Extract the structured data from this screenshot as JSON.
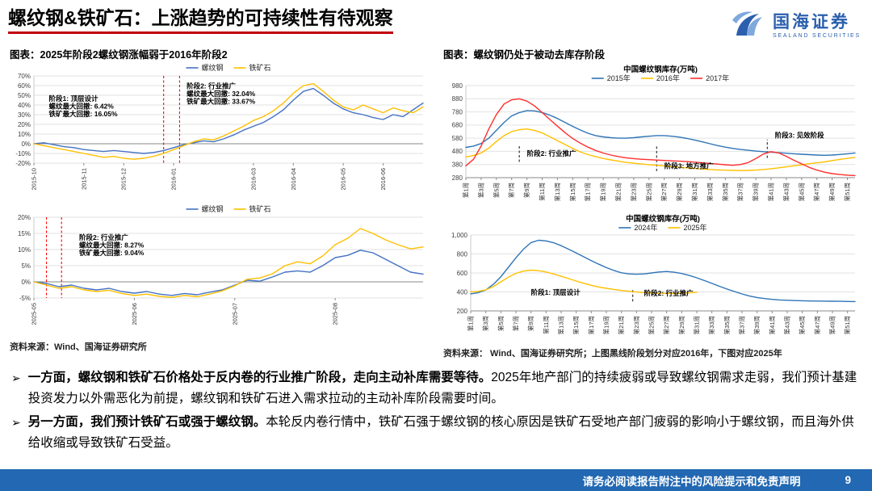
{
  "header": {
    "title": "螺纹钢&铁矿石：上涨趋势的可持续性有待观察",
    "logo_cn": "国海证券",
    "logo_en": "SEALAND SECURITIES"
  },
  "left_panel": {
    "caption": "图表：2025年阶段2螺纹钢涨幅弱于2016年阶段2",
    "source": "资料来源：Wind、国海证券研究所"
  },
  "right_panel": {
    "caption": "图表：螺纹钢仍处于被动去库存阶段",
    "source": "资料来源： Wind、国海证券研究所；上图黑线阶段划分对应2016年，下图对应2025年"
  },
  "bullet_marker": "➢",
  "bullets": [
    {
      "segments": [
        {
          "text": "一方面，螺纹钢和铁矿石价格处于反内卷的行业推广阶段，走向主动补库需要等待。",
          "bold": true
        },
        {
          "text": "2025年地产部门的持续疲弱或导致螺纹钢需求走弱，我们预计基建投资发力以外需恶化为前提，螺纹钢和铁矿石进入需求拉动的主动补库阶段需要时间。",
          "bold": false
        }
      ]
    },
    {
      "segments": [
        {
          "text": "另一方面，我们预计铁矿石或强于螺纹钢。",
          "bold": true
        },
        {
          "text": "本轮反内卷行情中，铁矿石强于螺纹钢的核心原因是铁矿石受地产部门疲弱的影响小于螺纹钢，而且海外供给收缩或导致铁矿石受益。",
          "bold": false
        }
      ]
    }
  ],
  "footer": {
    "disclaimer": "请务必阅读报告附注中的风险提示和免责声明",
    "page": "9"
  },
  "colors": {
    "accent_red": "#C00000",
    "brand_blue": "#2B5FAE",
    "footer_blue": "#2268B2",
    "rebar_blue": "#4472C4",
    "ore_yellow": "#FFC000",
    "inventory_blue": "#2E75B6",
    "inventory_red": "#FF2E2E"
  },
  "chart_data": [
    {
      "id": "chart1",
      "type": "line",
      "title": "",
      "y_format": "percent",
      "ylim": [
        -20,
        70
      ],
      "y_step": 10,
      "x_ticks": {
        "positions": [
          0,
          5,
          9,
          14,
          22,
          26,
          31,
          35
        ],
        "labels": [
          "2015-10",
          "2015-11",
          "2015-12",
          "2016-01",
          "2016-03",
          "2016-04",
          "2016-05",
          "2016-06"
        ]
      },
      "series": [
        {
          "name": "螺纹钢",
          "color": "#4472C4",
          "values": [
            0,
            1,
            -1,
            -3,
            -4,
            -6,
            -7,
            -8,
            -7,
            -8,
            -9,
            -10,
            -9,
            -7,
            -4,
            -1,
            1,
            3,
            2,
            5,
            9,
            14,
            18,
            22,
            28,
            35,
            45,
            54,
            57,
            50,
            42,
            36,
            32,
            30,
            27,
            25,
            30,
            28,
            35,
            42
          ]
        },
        {
          "name": "铁矿石",
          "color": "#FFC000",
          "values": [
            0,
            -2,
            -4,
            -6,
            -8,
            -10,
            -12,
            -14,
            -13,
            -15,
            -16,
            -15,
            -13,
            -10,
            -6,
            -2,
            2,
            5,
            4,
            8,
            13,
            18,
            24,
            28,
            34,
            42,
            52,
            60,
            62,
            54,
            45,
            38,
            35,
            40,
            36,
            32,
            37,
            34,
            32,
            38
          ]
        }
      ],
      "vlines": [
        {
          "x": 13,
          "color": "#FF0000"
        },
        {
          "x": 14.6,
          "color": "#FF0000"
        }
      ],
      "annotations": [
        {
          "x": 1.5,
          "y": 44,
          "lines": [
            "阶段1: 顶层设计",
            "螺纹最大回撤: 6.42%",
            "铁矿最大回撤: 16.05%"
          ]
        },
        {
          "x": 15.3,
          "y": 57,
          "lines": [
            "阶段2: 行业推广",
            "螺纹最大回撤: 32.04%",
            "铁矿最大回撤: 33.67%"
          ]
        }
      ]
    },
    {
      "id": "chart2",
      "type": "line",
      "title": "",
      "y_format": "percent",
      "ylim": [
        -5,
        20
      ],
      "y_step": 5,
      "x_ticks": {
        "positions": [
          0,
          8,
          16,
          24
        ],
        "labels": [
          "2025-05",
          "2025-06",
          "2025-07",
          "2025-08"
        ]
      },
      "series": [
        {
          "name": "螺纹钢",
          "color": "#4472C4",
          "values": [
            0,
            -0.5,
            -1.5,
            -1,
            -2,
            -2.5,
            -2,
            -3,
            -3.5,
            -3,
            -3.8,
            -4.2,
            -3.6,
            -4,
            -3.2,
            -2.5,
            -1,
            0.5,
            0.2,
            1.5,
            3,
            3.4,
            3,
            5,
            7.5,
            8.2,
            9.8,
            9,
            7,
            5,
            3,
            2.4
          ]
        },
        {
          "name": "铁矿石",
          "color": "#FFC000",
          "values": [
            0,
            -1,
            -2,
            -1.5,
            -2.5,
            -3,
            -2.6,
            -3.6,
            -4.2,
            -3.8,
            -4.5,
            -4.8,
            -4.2,
            -4.6,
            -3.8,
            -2.8,
            -1.2,
            0.8,
            1.2,
            2.5,
            5,
            6.2,
            5.6,
            8,
            11.5,
            13.5,
            16.5,
            15,
            13,
            11.5,
            10.2,
            10.8
          ]
        }
      ],
      "vlines": [
        {
          "x": 1,
          "color": "#FF0000"
        },
        {
          "x": 2.2,
          "color": "#FF0000"
        }
      ],
      "annotations": [
        {
          "x": 3.6,
          "y": 13,
          "lines": [
            "阶段2: 行业推广",
            "螺纹最大回撤: 8.27%",
            "铁矿最大回撤: 9.04%"
          ]
        }
      ]
    },
    {
      "id": "chart3",
      "type": "line",
      "title": "中国螺纹钢库存(万吨)",
      "y_format": "number",
      "ylim": [
        280,
        980
      ],
      "y_step": 100,
      "x_ticks": {
        "positions": [
          0,
          2,
          4,
          6,
          8,
          10,
          12,
          14,
          16,
          18,
          20,
          22,
          24,
          26,
          28,
          30,
          32,
          34,
          36,
          38,
          40,
          42,
          44,
          46,
          48,
          50
        ],
        "labels": [
          "第1周",
          "第3周",
          "第5周",
          "第7周",
          "第9周",
          "第11周",
          "第13周",
          "第15周",
          "第17周",
          "第19周",
          "第21周",
          "第23周",
          "第25周",
          "第27周",
          "第29周",
          "第31周",
          "第33周",
          "第35周",
          "第37周",
          "第39周",
          "第41周",
          "第43周",
          "第45周",
          "第47周",
          "第49周",
          "第51周"
        ]
      },
      "series": [
        {
          "name": "2015年",
          "color": "#2E75B6",
          "values": [
            510,
            520,
            540,
            580,
            640,
            700,
            750,
            775,
            790,
            788,
            775,
            755,
            730,
            700,
            670,
            642,
            618,
            600,
            590,
            584,
            580,
            580,
            584,
            590,
            595,
            600,
            600,
            595,
            588,
            578,
            566,
            552,
            538,
            524,
            512,
            502,
            494,
            488,
            482,
            478,
            474,
            470,
            466,
            462,
            458,
            455,
            452,
            450,
            452,
            456,
            462,
            468
          ]
        },
        {
          "name": "2016年",
          "color": "#FFC000",
          "values": [
            438,
            448,
            468,
            505,
            555,
            600,
            630,
            645,
            650,
            640,
            620,
            592,
            562,
            532,
            502,
            476,
            455,
            440,
            426,
            415,
            405,
            396,
            390,
            384,
            379,
            374,
            369,
            364,
            359,
            354,
            350,
            346,
            342,
            339,
            337,
            335,
            334,
            335,
            338,
            342,
            348,
            355,
            362,
            370,
            378,
            386,
            393,
            400,
            410,
            419,
            427,
            434
          ]
        },
        {
          "name": "2017年",
          "color": "#FF2E2E",
          "values": [
            370,
            420,
            520,
            650,
            760,
            840,
            872,
            880,
            862,
            825,
            775,
            722,
            672,
            622,
            578,
            542,
            512,
            487,
            467,
            452,
            440,
            431,
            425,
            420,
            417,
            414,
            411,
            408,
            405,
            402,
            398,
            393,
            388,
            383,
            378,
            374,
            380,
            395,
            425,
            460,
            478,
            468,
            442,
            412,
            385,
            358,
            338,
            322,
            311,
            304,
            299,
            296
          ]
        }
      ],
      "vlines": [
        {
          "x": 7,
          "y1": 400,
          "y2": 520,
          "color": "#222222"
        },
        {
          "x": 25,
          "y1": 330,
          "y2": 520,
          "color": "#222222"
        },
        {
          "x": 39.5,
          "y1": 430,
          "y2": 570,
          "color": "#222222"
        }
      ],
      "annotations": [
        {
          "x": 8,
          "y": 445,
          "lines": [
            "阶段2: 行业推广"
          ]
        },
        {
          "x": 26,
          "y": 350,
          "lines": [
            "阶段3: 地方推广"
          ]
        },
        {
          "x": 40.5,
          "y": 585,
          "lines": [
            "阶段3: 见效阶段"
          ]
        }
      ]
    },
    {
      "id": "chart4",
      "type": "line",
      "title": "中国螺纹钢库存(万吨)",
      "y_format": "number",
      "ylim": [
        200,
        1000
      ],
      "y_step": 200,
      "x_ticks": {
        "positions": [
          0,
          2,
          4,
          6,
          8,
          10,
          12,
          14,
          16,
          18,
          20,
          22,
          24,
          26,
          28,
          30,
          32,
          34,
          36,
          38,
          40,
          42,
          44,
          46,
          48,
          50
        ],
        "labels": [
          "第1周",
          "第3周",
          "第5周",
          "第7周",
          "第9周",
          "第11周",
          "第13周",
          "第15周",
          "第17周",
          "第19周",
          "第21周",
          "第23周",
          "第25周",
          "第27周",
          "第29周",
          "第31周",
          "第33周",
          "第35周",
          "第37周",
          "第39周",
          "第41周",
          "第43周",
          "第45周",
          "第47周",
          "第49周",
          "第51周"
        ]
      },
      "series": [
        {
          "name": "2024年",
          "color": "#2E75B6",
          "values": [
            380,
            392,
            420,
            480,
            560,
            660,
            760,
            850,
            920,
            945,
            938,
            918,
            888,
            850,
            810,
            770,
            730,
            692,
            656,
            626,
            602,
            590,
            586,
            590,
            600,
            610,
            615,
            608,
            594,
            574,
            549,
            520,
            490,
            460,
            431,
            404,
            379,
            357,
            341,
            330,
            322,
            316,
            312,
            309,
            307,
            305,
            304,
            303,
            302,
            301,
            300,
            299
          ]
        },
        {
          "name": "2025年",
          "color": "#FFC000",
          "values": [
            400,
            406,
            422,
            456,
            506,
            556,
            596,
            620,
            630,
            624,
            610,
            589,
            565,
            540,
            515,
            491,
            470,
            452,
            438,
            426,
            415,
            407,
            399,
            393,
            389,
            386,
            384,
            383,
            386,
            391,
            397
          ]
        }
      ],
      "vlines": [
        {
          "x": 21.5,
          "y1": 300,
          "y2": 430,
          "color": "#222222"
        }
      ],
      "annotations": [
        {
          "x": 8,
          "y": 370,
          "lines": [
            "阶段1: 顶层设计"
          ]
        },
        {
          "x": 23,
          "y": 360,
          "lines": [
            "阶段2: 行业推广"
          ]
        }
      ]
    }
  ]
}
